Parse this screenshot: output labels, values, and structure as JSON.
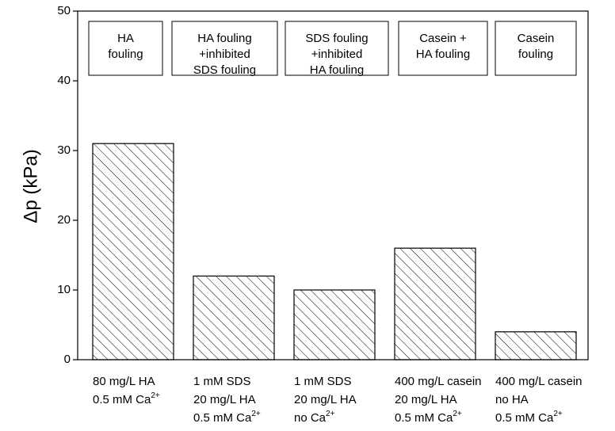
{
  "chart_data": {
    "type": "bar",
    "ylabel": "Δp (kPa)",
    "categories": [
      [
        "80 mg/L HA",
        "0.5 mM Ca2+"
      ],
      [
        "1 mM SDS",
        "20 mg/L HA",
        "0.5 mM Ca2+"
      ],
      [
        "1 mM SDS",
        "20 mg/L HA",
        "no Ca2+"
      ],
      [
        "400 mg/L casein",
        "20 mg/L HA",
        "0.5 mM Ca2+"
      ],
      [
        "400 mg/L casein",
        "no HA",
        "0.5 mM Ca2+"
      ]
    ],
    "values": [
      31,
      12,
      10,
      16,
      4
    ],
    "annotations": [
      [
        "HA",
        "fouling"
      ],
      [
        "HA fouling",
        "+inhibited",
        "SDS fouling"
      ],
      [
        "SDS fouling",
        "+inhibited",
        "HA fouling"
      ],
      [
        "Casein +",
        "HA fouling"
      ],
      [
        "Casein",
        "fouling"
      ]
    ],
    "color": "#000000",
    "ylim": [
      0,
      50
    ],
    "yticks": [
      0,
      10,
      20,
      30,
      40,
      50
    ]
  }
}
